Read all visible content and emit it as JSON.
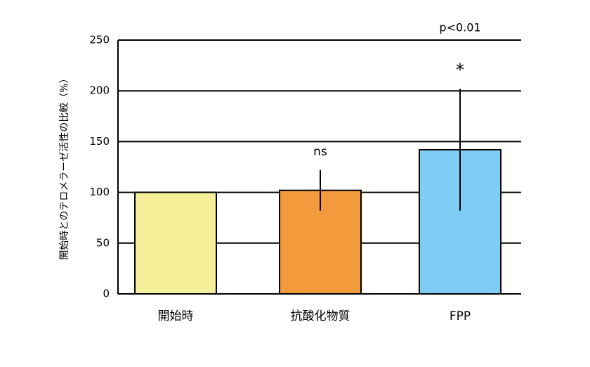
{
  "chart_data": {
    "type": "bar",
    "y_label": "開始時とのテロメラーゼ活性の比較（%）",
    "categories": [
      "開始時",
      "抗酸化物質",
      "FPP"
    ],
    "values": [
      100,
      102,
      142
    ],
    "errors": [
      null,
      20,
      60
    ],
    "colors": [
      "#f5ef9a",
      "#f39a3c",
      "#7ecdf4"
    ],
    "annotations": [
      "",
      "ns",
      "*"
    ],
    "significance": "p<0.01",
    "ylim": [
      0,
      250
    ],
    "yticks": [
      0,
      50,
      100,
      150,
      200,
      250
    ],
    "grid": true
  }
}
